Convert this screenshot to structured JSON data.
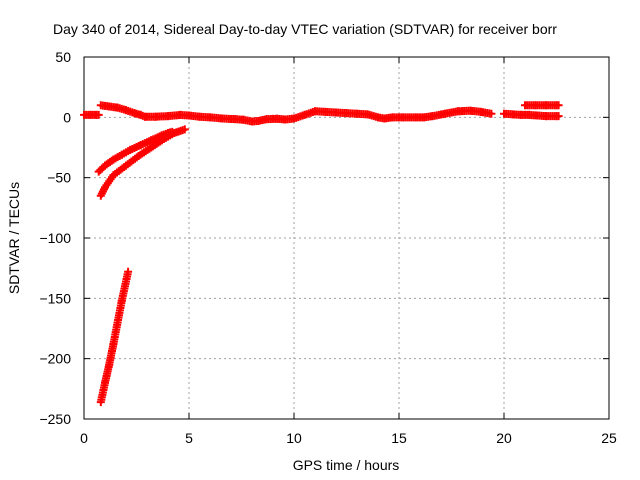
{
  "chart_data": {
    "type": "scatter",
    "title": "Day 340 of 2014, Sidereal Day-to-day VTEC variation (SDTVAR) for receiver borr",
    "xlabel": "GPS time / hours",
    "ylabel": "SDTVAR / TECUs",
    "xlim": [
      0,
      25
    ],
    "ylim": [
      -250,
      50
    ],
    "xticks": [
      "0",
      "5",
      "10",
      "15",
      "20",
      "25"
    ],
    "yticks": [
      "50",
      "0",
      "-50",
      "-100",
      "-150",
      "-200",
      "-250"
    ],
    "grid": true,
    "legend": "none",
    "marker": "plus",
    "series_color": "#ff0000",
    "series": [
      {
        "segments": [
          [
            [
              0.0,
              2
            ],
            [
              0.3,
              2
            ],
            [
              0.6,
              2
            ],
            [
              0.7,
              2
            ]
          ],
          [
            [
              0.8,
              10
            ],
            [
              1.2,
              9
            ],
            [
              1.6,
              8
            ],
            [
              2.0,
              6
            ],
            [
              2.4,
              3.5
            ],
            [
              2.7,
              2
            ],
            [
              2.9,
              0.5
            ],
            [
              3.4,
              0.5
            ],
            [
              4.0,
              1
            ],
            [
              4.6,
              2
            ],
            [
              5.0,
              1.5
            ],
            [
              5.5,
              0.5
            ],
            [
              6.0,
              0
            ],
            [
              6.6,
              -1
            ],
            [
              7.2,
              -1.5
            ],
            [
              7.6,
              -2
            ],
            [
              8.0,
              -3.5
            ],
            [
              8.3,
              -3
            ],
            [
              8.7,
              -1.5
            ],
            [
              9.2,
              -1.2
            ],
            [
              9.6,
              -1.8
            ],
            [
              10.0,
              -1
            ],
            [
              10.5,
              2
            ],
            [
              11.0,
              5
            ],
            [
              11.5,
              4.5
            ],
            [
              12.0,
              4
            ],
            [
              12.5,
              3.5
            ],
            [
              13.0,
              3
            ],
            [
              13.5,
              2.5
            ],
            [
              14.0,
              0
            ],
            [
              14.3,
              -1
            ],
            [
              14.7,
              0
            ],
            [
              15.2,
              0
            ],
            [
              15.8,
              0
            ],
            [
              16.2,
              0
            ],
            [
              16.6,
              1
            ],
            [
              17.2,
              3
            ],
            [
              17.8,
              5
            ],
            [
              18.4,
              5.5
            ],
            [
              18.9,
              4.5
            ],
            [
              19.4,
              3
            ]
          ],
          [
            [
              20.0,
              3
            ],
            [
              20.4,
              2.5
            ],
            [
              20.8,
              2
            ],
            [
              21.2,
              2
            ],
            [
              21.6,
              1.5
            ],
            [
              22.0,
              1
            ],
            [
              22.5,
              1
            ],
            [
              22.6,
              1
            ]
          ],
          [
            [
              21.0,
              10
            ],
            [
              21.5,
              10
            ],
            [
              22.0,
              10
            ],
            [
              22.5,
              10
            ],
            [
              22.6,
              10
            ]
          ],
          [
            [
              0.7,
              -45
            ],
            [
              1.0,
              -40
            ],
            [
              1.4,
              -35
            ],
            [
              1.8,
              -31
            ],
            [
              2.2,
              -27
            ],
            [
              2.7,
              -23
            ],
            [
              3.2,
              -19
            ],
            [
              3.7,
              -15
            ],
            [
              4.0,
              -13
            ],
            [
              4.2,
              -12
            ]
          ],
          [
            [
              0.8,
              -65
            ],
            [
              1.0,
              -58
            ],
            [
              1.4,
              -48
            ],
            [
              2.0,
              -40
            ],
            [
              2.6,
              -32
            ],
            [
              3.2,
              -25
            ],
            [
              3.8,
              -18
            ],
            [
              4.3,
              -13
            ],
            [
              4.8,
              -10
            ]
          ],
          [
            [
              0.8,
              -236
            ],
            [
              1.0,
              -220
            ],
            [
              1.2,
              -205
            ],
            [
              1.4,
              -188
            ],
            [
              1.6,
              -170
            ],
            [
              1.8,
              -152
            ],
            [
              2.0,
              -136
            ],
            [
              2.1,
              -128
            ]
          ]
        ]
      }
    ]
  }
}
